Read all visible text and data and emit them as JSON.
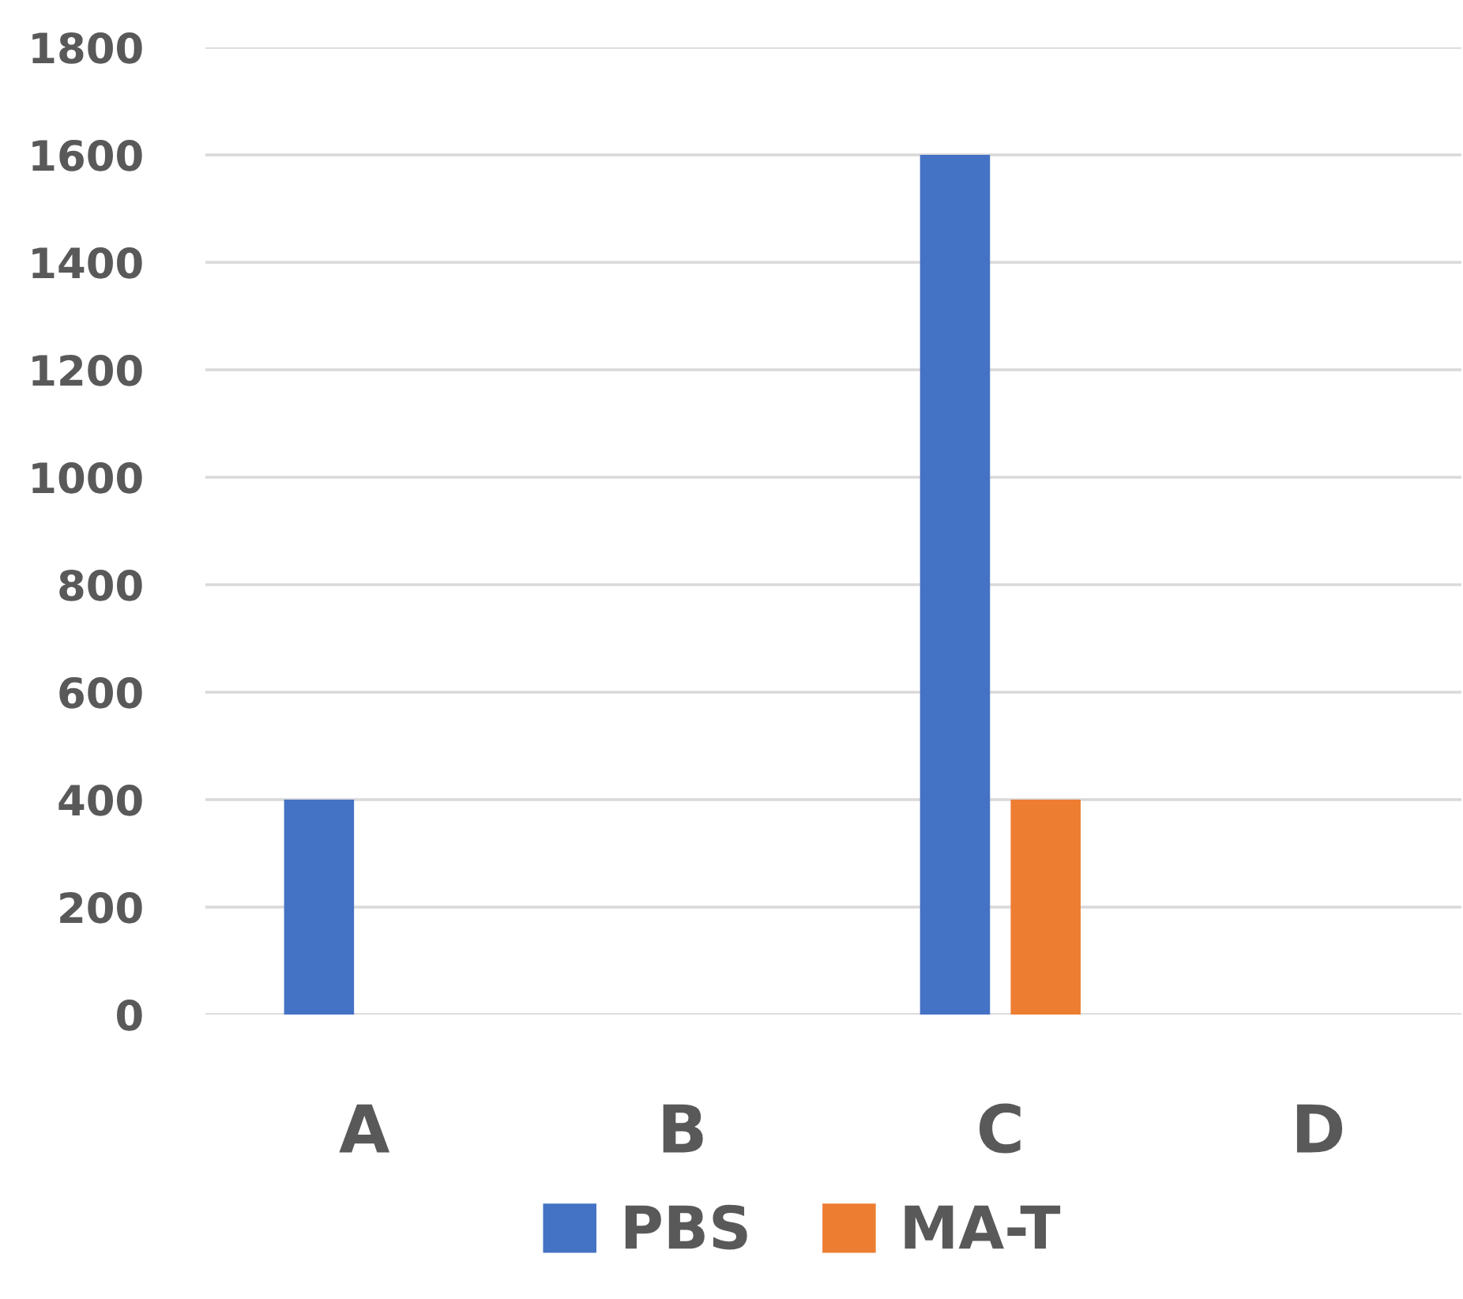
{
  "chart_data": {
    "type": "bar",
    "categories": [
      "A",
      "B",
      "C",
      "D"
    ],
    "series": [
      {
        "name": "PBS",
        "color": "#4472c4",
        "values": [
          400,
          0,
          1600,
          0
        ]
      },
      {
        "name": "MA-T",
        "color": "#ed7d31",
        "values": [
          0,
          0,
          400,
          0
        ]
      }
    ],
    "ylim": [
      0,
      1800
    ],
    "yticks": [
      0,
      200,
      400,
      600,
      800,
      1000,
      1200,
      1400,
      1600,
      1800
    ],
    "grid": "y",
    "legend": "bottom"
  }
}
